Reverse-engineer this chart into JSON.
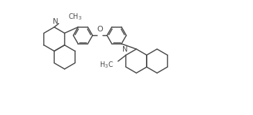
{
  "bg_color": "#ffffff",
  "line_color": "#4a4a4a",
  "line_width": 1.1,
  "font_size": 7.0,
  "figsize": [
    3.64,
    1.65
  ],
  "dpi": 100,
  "xlim": [
    -0.3,
    10.3
  ],
  "ylim": [
    -0.2,
    4.8
  ]
}
